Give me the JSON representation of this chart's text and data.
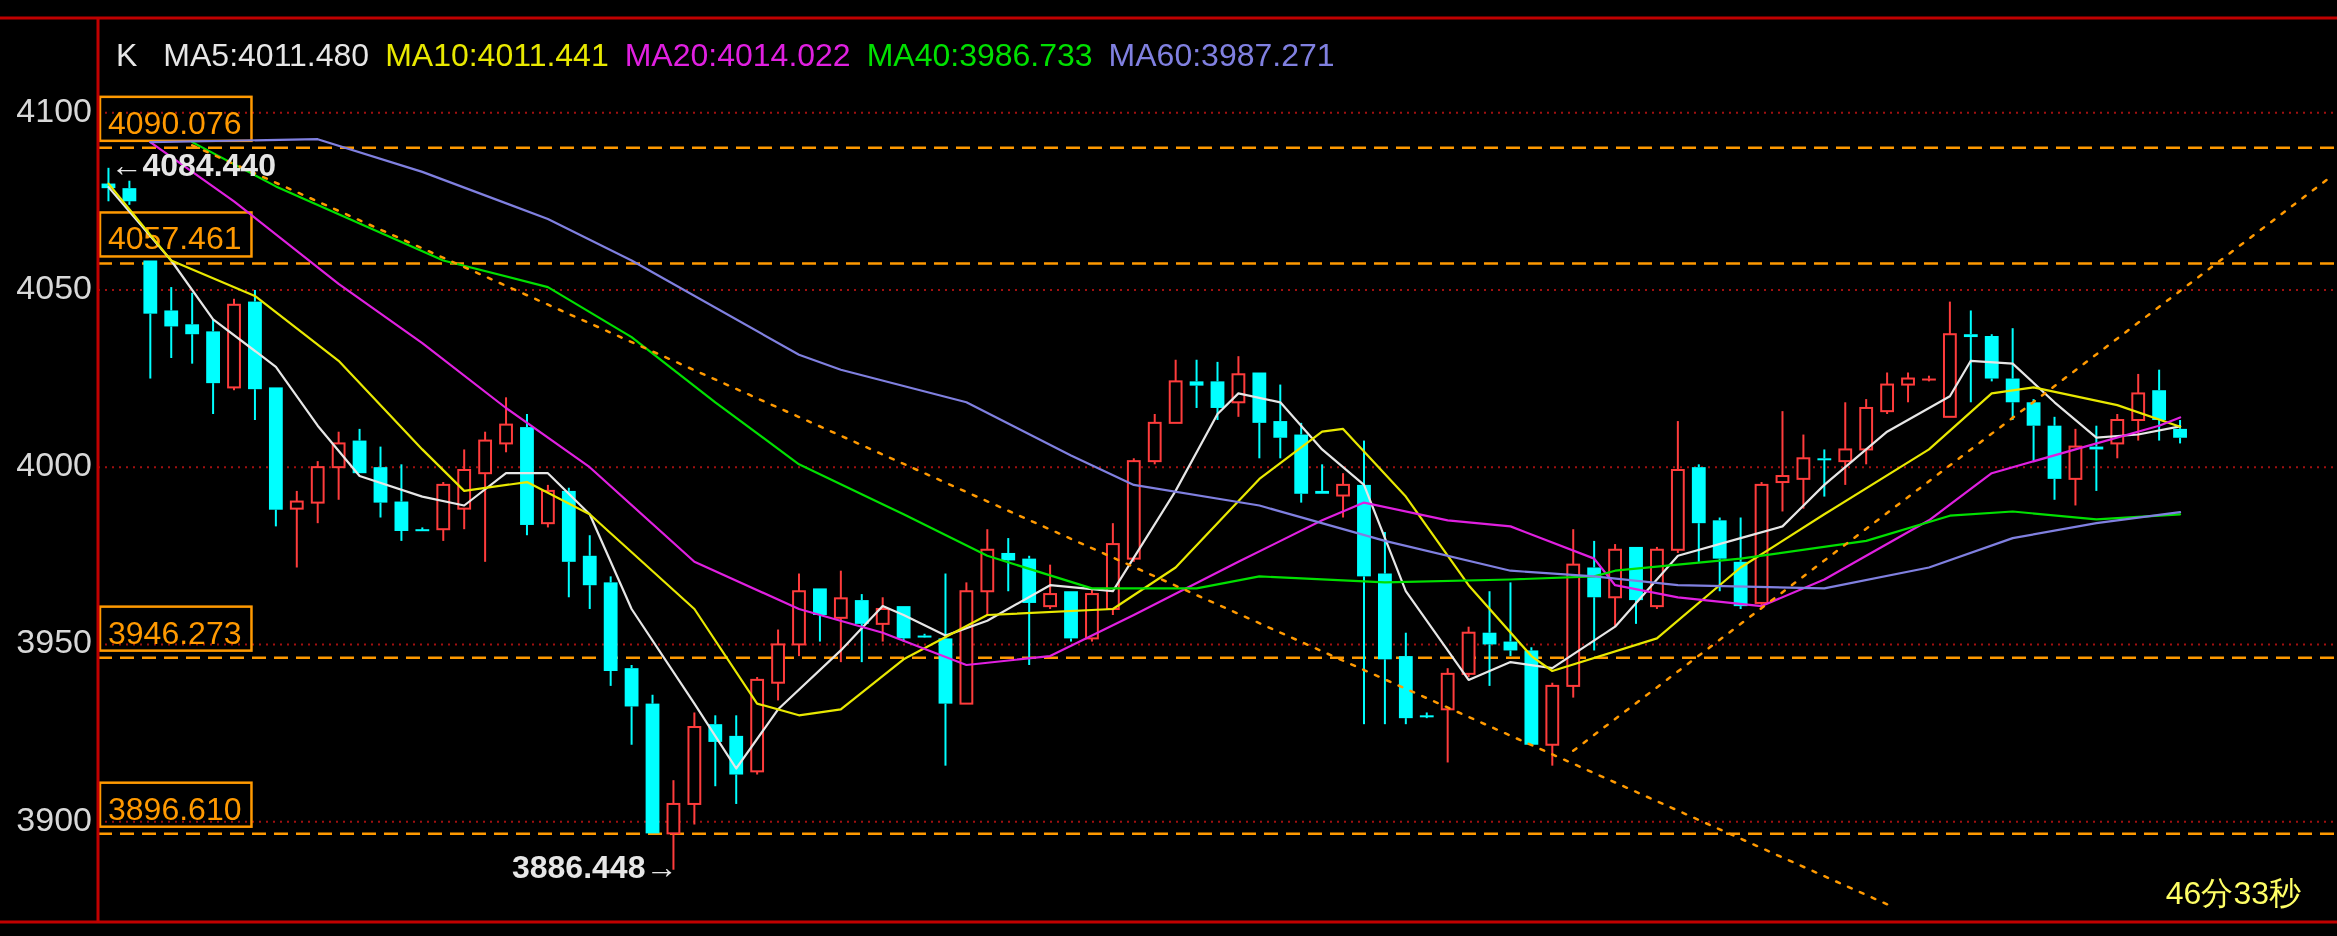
{
  "chart_data": {
    "type": "candlestick",
    "categories": [
      null,
      null,
      null,
      null,
      null,
      null,
      null,
      null,
      null,
      null,
      null,
      null,
      null,
      null,
      null,
      null,
      null,
      null,
      null,
      null,
      null,
      null,
      null,
      null,
      null,
      null,
      null,
      null,
      null,
      null,
      null,
      null,
      null,
      null,
      null,
      null,
      null,
      null,
      null,
      null,
      null,
      null,
      null,
      null,
      null,
      null,
      null,
      null,
      null,
      null,
      null,
      null,
      null,
      null,
      null,
      null,
      null,
      null,
      null,
      null,
      null,
      null,
      null,
      null,
      null,
      null,
      null,
      null,
      null,
      null,
      null,
      null,
      null,
      null,
      null,
      null,
      null,
      null,
      null,
      null,
      null,
      null,
      null,
      null,
      null,
      null,
      null,
      null,
      null,
      null,
      null,
      null,
      null,
      null,
      null,
      null,
      null,
      null,
      null,
      null,
      null,
      null,
      null,
      null,
      null,
      null,
      null
    ],
    "ohlc": [
      [
        4080,
        4084.44,
        4075,
        4078.7
      ],
      [
        4078.7,
        4080.8,
        4074,
        4075
      ],
      [
        4058.3,
        4058.3,
        4025,
        4043.3
      ],
      [
        4044.2,
        4050.8,
        4030.8,
        4039.7
      ],
      [
        4040.3,
        4049.2,
        4029.2,
        4037.5
      ],
      [
        4038.3,
        4041.7,
        4015,
        4023.7
      ],
      [
        4022.5,
        4047.5,
        4021.7,
        4045.8
      ],
      [
        4046.7,
        4050,
        4013.3,
        4022
      ],
      [
        4022.5,
        4022.5,
        3983.3,
        3988
      ],
      [
        3988.3,
        3993.3,
        3971.7,
        3990.3
      ],
      [
        3990,
        4001.7,
        3984.2,
        4000
      ],
      [
        4000,
        4010,
        3990.8,
        4006.7
      ],
      [
        4007.5,
        4010.8,
        3998.3,
        3998.3
      ],
      [
        4000,
        4005.8,
        3985.8,
        3990
      ],
      [
        3990.3,
        4000.8,
        3979.2,
        3982
      ],
      [
        3982.5,
        3983,
        3982,
        3982.5
      ],
      [
        3982.5,
        3995.8,
        3979.2,
        3995
      ],
      [
        3988.3,
        4005,
        3982.5,
        3999.2
      ],
      [
        3998.3,
        4010,
        3973.3,
        4007.5
      ],
      [
        4006.7,
        4019.7,
        4004.2,
        4012
      ],
      [
        4011.3,
        4015,
        3980.8,
        3983.7
      ],
      [
        3984.2,
        3995,
        3983,
        3993.3
      ],
      [
        3993.3,
        3994.2,
        3963.3,
        3973.3
      ],
      [
        3975,
        3980.8,
        3960,
        3966.7
      ],
      [
        3967.5,
        3969.2,
        3938.3,
        3942.5
      ],
      [
        3943.3,
        3944.2,
        3921.7,
        3932.5
      ],
      [
        3933.3,
        3935.8,
        3896.7,
        3896.7
      ],
      [
        3896.7,
        3911.7,
        3886.448,
        3905
      ],
      [
        3905,
        3930.8,
        3899.2,
        3926.7
      ],
      [
        3927.5,
        3930,
        3910,
        3922.5
      ],
      [
        3924.2,
        3930,
        3905,
        3913.3
      ],
      [
        3914.2,
        3940.8,
        3913.3,
        3940
      ],
      [
        3939.2,
        3954.2,
        3934.2,
        3950
      ],
      [
        3950,
        3970,
        3946.7,
        3965
      ],
      [
        3965.8,
        3965.8,
        3950.8,
        3958.3
      ],
      [
        3957.5,
        3970.8,
        3945,
        3963
      ],
      [
        3962.5,
        3964.2,
        3945,
        3955.8
      ],
      [
        3955.8,
        3963.3,
        3950.8,
        3960
      ],
      [
        3960.8,
        3960.8,
        3950.8,
        3951.7
      ],
      [
        3952.5,
        3953,
        3952,
        3952.5
      ],
      [
        3951.7,
        3970,
        3915.8,
        3933.3
      ],
      [
        3933.3,
        3967.5,
        3933.3,
        3965
      ],
      [
        3965,
        3982.5,
        3958.3,
        3976.7
      ],
      [
        3975.8,
        3980,
        3965,
        3973.7
      ],
      [
        3974.2,
        3975,
        3944.2,
        3961.7
      ],
      [
        3960.8,
        3972.5,
        3960,
        3964.2
      ],
      [
        3965,
        3965,
        3950.8,
        3951.7
      ],
      [
        3951.7,
        3965.8,
        3950.8,
        3964.2
      ],
      [
        3960,
        3984.2,
        3958.3,
        3978.3
      ],
      [
        3974.2,
        4002.5,
        3973.3,
        4001.7
      ],
      [
        4001.7,
        4015,
        4000.8,
        4012.5
      ],
      [
        4012.5,
        4030.3,
        4012.5,
        4024.2
      ],
      [
        4024.2,
        4030.3,
        4016.7,
        4023
      ],
      [
        4024.2,
        4029.7,
        4013.3,
        4016.7
      ],
      [
        4018.3,
        4031.3,
        4014.2,
        4026.2
      ],
      [
        4026.7,
        4026.7,
        4002.5,
        4012.5
      ],
      [
        4013,
        4023.3,
        4002.5,
        4008.3
      ],
      [
        4009.2,
        4012.5,
        3990,
        3992.5
      ],
      [
        3993.3,
        4000.8,
        3992.5,
        3992.5
      ],
      [
        3992,
        3998.3,
        3985.8,
        3995
      ],
      [
        3995,
        4007.5,
        3927.5,
        3969.2
      ],
      [
        3970,
        3981.7,
        3927.5,
        3945.8
      ],
      [
        3946.7,
        3953.3,
        3927.5,
        3929.2
      ],
      [
        3930,
        3930.8,
        3929.2,
        3930
      ],
      [
        3931.7,
        3943.3,
        3916.7,
        3941.7
      ],
      [
        3941.7,
        3955,
        3940.8,
        3953.3
      ],
      [
        3953.3,
        3965,
        3938.3,
        3950
      ],
      [
        3950.8,
        3967.5,
        3946.7,
        3948.3
      ],
      [
        3948.3,
        3949.2,
        3921.7,
        3921.7
      ],
      [
        3921.7,
        3939.2,
        3915.8,
        3938.3
      ],
      [
        3938.3,
        3982.5,
        3935,
        3972.5
      ],
      [
        3971.7,
        3979.2,
        3948.3,
        3963.3
      ],
      [
        3963.3,
        3978.3,
        3955,
        3976.7
      ],
      [
        3977.5,
        3977.5,
        3955.8,
        3962.5
      ],
      [
        3960.8,
        3977.5,
        3960,
        3976.7
      ],
      [
        3976.7,
        4013,
        3975.8,
        3999.2
      ],
      [
        4000,
        4000.8,
        3973.3,
        3984.2
      ],
      [
        3985,
        3985.8,
        3965,
        3974.2
      ],
      [
        3973.3,
        3985.8,
        3960,
        3960.8
      ],
      [
        3961.7,
        3995.8,
        3960.8,
        3995
      ],
      [
        3995.8,
        4015.8,
        3987.5,
        3997.5
      ],
      [
        3996.7,
        4009.2,
        3988.3,
        4002.5
      ],
      [
        4002.5,
        4005,
        3991.7,
        4002
      ],
      [
        4001.7,
        4018.3,
        3995,
        4005
      ],
      [
        4005,
        4019.2,
        4000.8,
        4016.7
      ],
      [
        4015.8,
        4026.7,
        4015,
        4023.3
      ],
      [
        4023.3,
        4026.7,
        4018.3,
        4025
      ],
      [
        4025,
        4025.8,
        4024.2,
        4025
      ],
      [
        4014.2,
        4046.7,
        4014.2,
        4037.5
      ],
      [
        4037.5,
        4044.2,
        4018.3,
        4036.7
      ],
      [
        4037,
        4037.5,
        4024.2,
        4025
      ],
      [
        4025,
        4039.2,
        4013.3,
        4018.3
      ],
      [
        4018.3,
        4019.2,
        4001.7,
        4011.7
      ],
      [
        4011.7,
        4014.2,
        3990.8,
        3996.7
      ],
      [
        3996.7,
        4010.8,
        3989.2,
        4005.8
      ],
      [
        4005.8,
        4011.7,
        3993.3,
        4005
      ],
      [
        4006.7,
        4015,
        4002.5,
        4013.3
      ],
      [
        4013.3,
        4026.3,
        4007.5,
        4020.8
      ],
      [
        4021.7,
        4027.5,
        4007.5,
        4013.3
      ],
      [
        4010.8,
        4013.3,
        4006.7,
        4008.3
      ],
      null,
      null,
      null,
      null,
      null,
      null,
      null
    ],
    "colors": [
      "#00ffff",
      "#00ffff",
      "#00ffff",
      "#00ffff",
      "#00ffff",
      "#00ffff",
      "#ff3c3c",
      "#00ffff",
      "#00ffff",
      "#ff3c3c",
      "#ff3c3c",
      "#ff3c3c",
      "#00ffff",
      "#00ffff",
      "#00ffff",
      "#00ffff",
      "#ff3c3c",
      "#ff3c3c",
      "#ff3c3c",
      "#ff3c3c",
      "#00ffff",
      "#ff3c3c",
      "#00ffff",
      "#00ffff",
      "#00ffff",
      "#00ffff",
      "#00ffff",
      "#ff3c3c",
      "#ff3c3c",
      "#00ffff",
      "#00ffff",
      "#ff3c3c",
      "#ff3c3c",
      "#ff3c3c",
      "#00ffff",
      "#ff3c3c",
      "#00ffff",
      "#ff3c3c",
      "#00ffff",
      "#00ffff",
      "#00ffff",
      "#ff3c3c",
      "#ff3c3c",
      "#00ffff",
      "#00ffff",
      "#ff3c3c",
      "#00ffff",
      "#ff3c3c",
      "#ff3c3c",
      "#ff3c3c",
      "#ff3c3c",
      "#ff3c3c",
      "#00ffff",
      "#00ffff",
      "#ff3c3c",
      "#00ffff",
      "#00ffff",
      "#00ffff",
      "#00ffff",
      "#ff3c3c",
      "#00ffff",
      "#00ffff",
      "#00ffff",
      "#00ffff",
      "#ff3c3c",
      "#ff3c3c",
      "#00ffff",
      "#00ffff",
      "#00ffff",
      "#ff3c3c",
      "#ff3c3c",
      "#00ffff",
      "#ff3c3c",
      "#00ffff",
      "#ff3c3c",
      "#ff3c3c",
      "#00ffff",
      "#00ffff",
      "#00ffff",
      "#ff3c3c",
      "#ff3c3c",
      "#ff3c3c",
      "#00ffff",
      "#ff3c3c",
      "#ff3c3c",
      "#ff3c3c",
      "#ff3c3c",
      "#ff3c3c",
      "#ff3c3c",
      "#00ffff",
      "#00ffff",
      "#00ffff",
      "#00ffff",
      "#00ffff",
      "#ff3c3c",
      "#00ffff",
      "#ff3c3c",
      "#ff3c3c",
      "#00ffff",
      "#00ffff",
      null,
      null,
      null,
      null,
      null,
      null,
      null
    ],
    "legend_title": "K",
    "series": [
      {
        "name": "MA5:4011.480",
        "type": "line",
        "color": "#e6e6e6",
        "values": [
          4079,
          null,
          null,
          4058.3,
          null,
          4041.7,
          null,
          null,
          4028.3,
          null,
          4011.7,
          null,
          3997.5,
          null,
          null,
          3991.7,
          null,
          3989.2,
          null,
          3998.3,
          null,
          3998.3,
          null,
          3986.7,
          null,
          3960,
          null,
          null,
          3933.3,
          null,
          3915,
          null,
          3931.7,
          null,
          null,
          3948.3,
          null,
          3960.8,
          3958.3,
          null,
          3952.5,
          null,
          3956.7,
          null,
          null,
          3966.7,
          null,
          null,
          3965,
          null,
          null,
          3993.3,
          null,
          4015,
          4020.8,
          null,
          4018.3,
          null,
          4005,
          null,
          3995,
          null,
          3965,
          null,
          null,
          3940,
          null,
          3945,
          null,
          3943.3,
          null,
          null,
          3955,
          null,
          null,
          3975,
          null,
          null,
          3980,
          null,
          3983.3,
          null,
          3995,
          null,
          null,
          4010,
          null,
          null,
          4020,
          4030,
          null,
          4029.2,
          null,
          4018.3,
          null,
          4008.3,
          null,
          4009.2,
          null,
          4011.5,
          null,
          null,
          null,
          null,
          null,
          null,
          null
        ]
      },
      {
        "name": "MA10:4011.441",
        "type": "line",
        "color": "#e8e800",
        "values": [
          4080,
          null,
          null,
          4058.3,
          null,
          null,
          null,
          4048.3,
          null,
          null,
          null,
          4030,
          null,
          null,
          null,
          4005,
          null,
          3993.3,
          null,
          null,
          3995.8,
          null,
          null,
          3986.7,
          null,
          null,
          null,
          null,
          3960,
          null,
          null,
          3933.3,
          null,
          3930,
          null,
          3931.7,
          null,
          null,
          3945.8,
          null,
          null,
          null,
          3958.3,
          null,
          null,
          null,
          null,
          null,
          3960,
          null,
          null,
          3971.7,
          null,
          null,
          null,
          3996.7,
          null,
          null,
          4010,
          4010.8,
          null,
          null,
          3991.7,
          null,
          null,
          3966.7,
          null,
          null,
          3946.7,
          3942.5,
          null,
          null,
          null,
          null,
          3951.7,
          null,
          null,
          null,
          3971.7,
          null,
          null,
          null,
          3986.7,
          null,
          null,
          null,
          null,
          4005,
          null,
          null,
          4020.8,
          null,
          4022.5,
          null,
          null,
          null,
          4017.5,
          null,
          null,
          4011.4,
          null,
          null,
          null,
          null,
          null,
          null,
          null
        ]
      },
      {
        "name": "MA20:4014.022",
        "type": "line",
        "color": "#e020e0",
        "values": [
          null,
          null,
          4091.7,
          null,
          null,
          null,
          4075,
          null,
          null,
          null,
          null,
          4051.7,
          null,
          null,
          null,
          4035,
          null,
          null,
          null,
          4016.7,
          null,
          null,
          null,
          4000,
          null,
          null,
          null,
          null,
          3973.3,
          null,
          null,
          null,
          null,
          3960,
          null,
          null,
          null,
          3953.3,
          null,
          null,
          null,
          3944.2,
          null,
          null,
          null,
          3946.7,
          null,
          null,
          null,
          3958.3,
          null,
          null,
          null,
          null,
          3973.3,
          null,
          null,
          null,
          3985,
          null,
          3990,
          null,
          null,
          null,
          3985,
          null,
          null,
          3983.3,
          null,
          null,
          null,
          3974.2,
          3966.7,
          null,
          null,
          3963.3,
          null,
          null,
          null,
          3960.8,
          null,
          null,
          3968.3,
          null,
          null,
          null,
          null,
          3985,
          null,
          null,
          3998.3,
          null,
          null,
          null,
          4005,
          null,
          null,
          null,
          4011.7,
          4014,
          null,
          null,
          null,
          null,
          null,
          null,
          null
        ]
      },
      {
        "name": "MA40:3986.733",
        "type": "line",
        "color": "#00e000",
        "values": [
          null,
          null,
          null,
          null,
          4091.7,
          null,
          null,
          null,
          4079.2,
          null,
          null,
          null,
          null,
          null,
          null,
          null,
          4058.3,
          null,
          null,
          null,
          null,
          4050.8,
          null,
          null,
          null,
          4036.7,
          null,
          null,
          null,
          4018.3,
          null,
          null,
          null,
          4000.8,
          null,
          null,
          null,
          null,
          3986.7,
          null,
          null,
          null,
          3975,
          null,
          null,
          null,
          null,
          3965.8,
          null,
          null,
          null,
          null,
          3965.8,
          null,
          null,
          3969.2,
          null,
          null,
          null,
          null,
          null,
          3967.5,
          null,
          null,
          null,
          null,
          null,
          3968.3,
          null,
          null,
          null,
          3969.2,
          3970.8,
          null,
          null,
          null,
          null,
          null,
          3974.2,
          null,
          null,
          null,
          null,
          null,
          3979.2,
          null,
          null,
          null,
          3986.3,
          null,
          null,
          3987.5,
          null,
          null,
          null,
          3985.3,
          null,
          null,
          null,
          3986.7,
          null,
          null,
          null,
          null,
          null,
          null,
          null
        ]
      },
      {
        "name": "MA60:3987.271",
        "type": "line",
        "color": "#8080e0",
        "values": [
          null,
          null,
          4091.7,
          null,
          null,
          null,
          null,
          null,
          null,
          null,
          4092.5,
          null,
          null,
          null,
          null,
          4083.3,
          null,
          null,
          null,
          null,
          null,
          4070,
          null,
          null,
          null,
          4058.3,
          null,
          null,
          null,
          null,
          null,
          null,
          null,
          4031.7,
          null,
          4027.5,
          null,
          null,
          null,
          null,
          null,
          4018.3,
          null,
          null,
          null,
          null,
          4003.3,
          null,
          null,
          3995,
          null,
          null,
          null,
          null,
          null,
          3989.2,
          null,
          null,
          null,
          null,
          null,
          3979.2,
          null,
          null,
          null,
          null,
          null,
          3970.8,
          null,
          null,
          null,
          3969.2,
          null,
          null,
          null,
          3966.7,
          null,
          null,
          null,
          null,
          null,
          null,
          3965.8,
          null,
          null,
          null,
          null,
          3971.7,
          null,
          null,
          null,
          3980,
          null,
          null,
          null,
          3984.2,
          null,
          null,
          null,
          3987.3,
          null,
          null,
          null,
          null,
          null,
          null,
          null
        ]
      },
      {
        "type": "line",
        "color": "#ff9900",
        "line_style": "dotted",
        "values": [
          null,
          null,
          null,
          null,
          4090.8,
          null,
          null,
          null,
          null,
          null,
          null,
          null,
          null,
          null,
          null,
          null,
          null,
          null,
          null,
          null,
          null,
          null,
          null,
          null,
          null,
          null,
          null,
          null,
          null,
          null,
          null,
          null,
          null,
          null,
          null,
          null,
          null,
          null,
          null,
          null,
          null,
          null,
          null,
          null,
          null,
          null,
          null,
          null,
          null,
          null,
          null,
          null,
          null,
          null,
          null,
          null,
          null,
          null,
          null,
          null,
          null,
          null,
          null,
          null,
          null,
          null,
          null,
          null,
          null,
          null,
          null,
          null,
          null,
          null,
          null,
          null,
          null,
          null,
          null,
          null,
          null,
          null,
          null,
          null,
          null,
          3876.7,
          null,
          null,
          null,
          null,
          null,
          null,
          null,
          null,
          null,
          null,
          null,
          null,
          null,
          null,
          null,
          null,
          null,
          null,
          null,
          null,
          null
        ]
      },
      {
        "type": "line",
        "color": "#ff9900",
        "line_style": "dotted",
        "values": [
          null,
          null,
          null,
          null,
          null,
          null,
          null,
          null,
          null,
          null,
          null,
          null,
          null,
          null,
          null,
          null,
          null,
          null,
          null,
          null,
          null,
          null,
          null,
          null,
          null,
          null,
          null,
          null,
          null,
          null,
          null,
          null,
          null,
          null,
          null,
          null,
          null,
          null,
          null,
          null,
          null,
          null,
          null,
          null,
          null,
          null,
          null,
          null,
          null,
          null,
          null,
          null,
          null,
          null,
          null,
          null,
          null,
          null,
          null,
          null,
          null,
          null,
          null,
          null,
          null,
          null,
          null,
          null,
          null,
          null,
          3920,
          null,
          null,
          null,
          null,
          null,
          null,
          null,
          null,
          null,
          null,
          null,
          null,
          null,
          null,
          null,
          null,
          null,
          null,
          null,
          null,
          null,
          null,
          null,
          null,
          null,
          null,
          null,
          null,
          null,
          null,
          null,
          null,
          null,
          null,
          null,
          4081
        ]
      }
    ],
    "ylim": [
      3871.7,
      4126.7
    ],
    "yticks": [
      3900,
      3950,
      4000,
      4050,
      4100
    ],
    "tick_labels": "y",
    "grid": "y",
    "legend": "top left",
    "ref_lines": [
      {
        "axis": "y",
        "value": 4090.076,
        "label": "4090.076",
        "color": "#ff9900",
        "line_style": "dashed"
      },
      {
        "axis": "y",
        "value": 4057.461,
        "label": "4057.461",
        "color": "#ff9900",
        "line_style": "dashed"
      },
      {
        "axis": "y",
        "value": 3946.273,
        "label": "3946.273",
        "color": "#ff9900",
        "line_style": "dashed"
      },
      {
        "axis": "y",
        "value": 3896.61,
        "label": "3896.610",
        "color": "#ff9900",
        "line_style": "dashed"
      }
    ],
    "annotations": [
      {
        "text": "←4084.440",
        "y": 4084.44
      },
      "3886.448→",
      "46分33秒"
    ]
  }
}
